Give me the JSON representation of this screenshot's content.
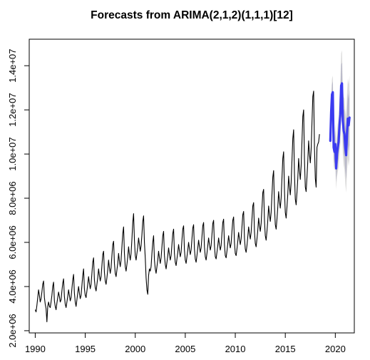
{
  "chart_data": {
    "type": "line",
    "title": "Forecasts from ARIMA(2,1,2)(1,1,1)[12]",
    "xlabel": "",
    "ylabel": "",
    "xlim": [
      1989.4,
      2021.9
    ],
    "ylim": [
      1900000,
      15200000
    ],
    "grid": false,
    "x_ticks": [
      1990,
      1995,
      2000,
      2005,
      2010,
      2015,
      2020
    ],
    "x_tick_labels": [
      "1990",
      "1995",
      "2000",
      "2005",
      "2010",
      "2015",
      "2020"
    ],
    "y_ticks": [
      2000000,
      4000000,
      6000000,
      8000000,
      10000000,
      12000000,
      14000000
    ],
    "y_tick_labels": [
      "2.0e+06",
      "4.0e+06",
      "6.0e+06",
      "8.0e+06",
      "1.0e+07",
      "1.2e+07",
      "1.4e+07"
    ],
    "series": [
      {
        "role": "observed",
        "color": "#000000",
        "x_start": 1990.0,
        "frequency": 12,
        "values": [
          2950000,
          2850000,
          3150000,
          3500000,
          3850000,
          3600000,
          3300000,
          3450000,
          3750000,
          4100000,
          4250000,
          3500000,
          3200000,
          3000000,
          2400000,
          3100000,
          3300000,
          3100000,
          3050000,
          3300000,
          3600000,
          4000000,
          4200000,
          3350000,
          3100000,
          2950000,
          3250000,
          3500000,
          3750000,
          3550000,
          3300000,
          3400000,
          3800000,
          4150000,
          4350000,
          3550000,
          3200000,
          3050000,
          3300000,
          3550000,
          3850000,
          3600000,
          3350000,
          3500000,
          3900000,
          4300000,
          4550000,
          3700000,
          3300000,
          3100000,
          3400000,
          3700000,
          4000000,
          3700000,
          3450000,
          3600000,
          4050000,
          4500000,
          4800000,
          3900000,
          3600000,
          3500000,
          3800000,
          4100000,
          4450000,
          4150000,
          3900000,
          4100000,
          4600000,
          5100000,
          5300000,
          4300000,
          3950000,
          3800000,
          4100000,
          4400000,
          4800000,
          4500000,
          4250000,
          4450000,
          4950000,
          5450000,
          5600000,
          4650000,
          4250000,
          4100000,
          4400000,
          4750000,
          5200000,
          4850000,
          4600000,
          4850000,
          5400000,
          5900000,
          6050000,
          5050000,
          4600000,
          4450000,
          4750000,
          5050000,
          5500000,
          5150000,
          4900000,
          5200000,
          5800000,
          6400000,
          6700000,
          5500000,
          4900000,
          4700000,
          5000000,
          5350000,
          5800000,
          5450000,
          5200000,
          5500000,
          6150000,
          6900000,
          7300000,
          6100000,
          5400000,
          5200000,
          5500000,
          5800000,
          6200000,
          5900000,
          5600000,
          5850000,
          6350000,
          6950000,
          7200000,
          6000000,
          5300000,
          4400000,
          3850000,
          3650000,
          4500000,
          4800000,
          4700000,
          4900000,
          5500000,
          6000000,
          6300000,
          5200000,
          4800000,
          4600000,
          4900000,
          5200000,
          5600000,
          5300000,
          5050000,
          5300000,
          5800000,
          6300000,
          6500000,
          5400000,
          5000000,
          4800000,
          5100000,
          5400000,
          5750000,
          5450000,
          5200000,
          5400000,
          5900000,
          6400000,
          6600000,
          5500000,
          5100000,
          4950000,
          5250000,
          5550000,
          5900000,
          5600000,
          5350000,
          5550000,
          6100000,
          6600000,
          6750000,
          5650000,
          5200000,
          5050000,
          5350000,
          5650000,
          6000000,
          5700000,
          5450000,
          5650000,
          6150000,
          6650000,
          6800000,
          5700000,
          5250000,
          5100000,
          5400000,
          5750000,
          6100000,
          5800000,
          5550000,
          5750000,
          6250000,
          6750000,
          6900000,
          5800000,
          5350000,
          5200000,
          5500000,
          5850000,
          6200000,
          5900000,
          5650000,
          5850000,
          6350000,
          6850000,
          7000000,
          5850000,
          5350000,
          5250000,
          5550000,
          5850000,
          6200000,
          5900000,
          5650000,
          5850000,
          6400000,
          6900000,
          7050000,
          5900000,
          5400000,
          5300000,
          5600000,
          5950000,
          6300000,
          6000000,
          5750000,
          5950000,
          6500000,
          7000000,
          7150000,
          6000000,
          5500000,
          5400000,
          5700000,
          6050000,
          6450000,
          6150000,
          5900000,
          6150000,
          6700000,
          7250000,
          7400000,
          6200000,
          5700000,
          5550000,
          5850000,
          6250000,
          6700000,
          6400000,
          6150000,
          6450000,
          7050000,
          7650000,
          7800000,
          6500000,
          5950000,
          5800000,
          6150000,
          6550000,
          7100000,
          6750000,
          6500000,
          6850000,
          7550000,
          8250000,
          8400000,
          7000000,
          6300000,
          6100000,
          6500000,
          7000000,
          7650000,
          7250000,
          6950000,
          7350000,
          8150000,
          8950000,
          9250000,
          7650000,
          6800000,
          6600000,
          7050000,
          7600000,
          8300000,
          7850000,
          7550000,
          8000000,
          8900000,
          9800000,
          10100000,
          8350000,
          7350000,
          7100000,
          7600000,
          8200000,
          9000000,
          8500000,
          8150000,
          8700000,
          9700000,
          10700000,
          11100000,
          9100000,
          7950000,
          7700000,
          8250000,
          8900000,
          9800000,
          9250000,
          8850000,
          9450000,
          10550000,
          11700000,
          12000000,
          9750000,
          8500000,
          8300000,
          8950000,
          9700000,
          10600000,
          10000000,
          9600000,
          10200000,
          11400000,
          12600000,
          12850000,
          10300000,
          8900000,
          8500000,
          10300000,
          10450000,
          10550000,
          10900000
        ]
      },
      {
        "role": "forecast",
        "color": "#3b3bf0",
        "x_start": 2019.5,
        "frequency": 12,
        "values": [
          10600000,
          11900000,
          12700000,
          12800000,
          10300000,
          10100000,
          10450000,
          9350000,
          10000000,
          10300000,
          10550000,
          11300000,
          11800000,
          13100000,
          13200000,
          11500000,
          11050000,
          10900000,
          10300000,
          9950000,
          10900000,
          11600000,
          11300000,
          11650000
        ],
        "lo95": [
          10150000,
          11350000,
          12000000,
          12050000,
          9500000,
          9250000,
          9500000,
          8400000,
          8950000,
          9200000,
          9400000,
          10050000,
          10400000,
          11650000,
          11700000,
          10000000,
          9500000,
          9300000,
          8650000,
          8250000,
          9150000,
          9800000,
          9450000,
          9750000
        ],
        "hi95": [
          11050000,
          12450000,
          13400000,
          13550000,
          11100000,
          10950000,
          11400000,
          10300000,
          11050000,
          11400000,
          11700000,
          12550000,
          13200000,
          14550000,
          14700000,
          13000000,
          12600000,
          12500000,
          11950000,
          11650000,
          12650000,
          13400000,
          13150000,
          13550000
        ],
        "lo80": [
          10300000,
          11550000,
          12250000,
          12300000,
          9800000,
          9550000,
          9850000,
          8750000,
          9300000,
          9600000,
          9800000,
          10500000,
          10900000,
          12150000,
          12250000,
          10550000,
          10050000,
          9850000,
          9250000,
          8850000,
          9800000,
          10450000,
          10100000,
          10400000
        ],
        "hi80": [
          10900000,
          12250000,
          13150000,
          13300000,
          10800000,
          10650000,
          11050000,
          9950000,
          10700000,
          11000000,
          11300000,
          12100000,
          12700000,
          14050000,
          14150000,
          12450000,
          12050000,
          11950000,
          11350000,
          11050000,
          12000000,
          12750000,
          12500000,
          12900000
        ]
      }
    ],
    "interval_colors": {
      "95": "#dcdcdc",
      "80": "#b9b9c9"
    }
  }
}
